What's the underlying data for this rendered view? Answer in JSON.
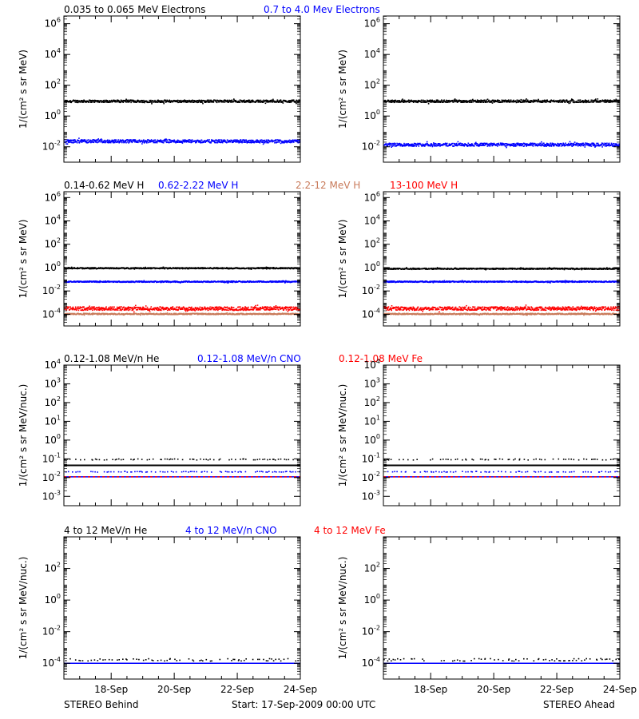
{
  "footer": {
    "left_label": "STEREO Behind",
    "center_label": "Start: 17-Sep-2009 00:00 UTC",
    "right_label": "STEREO Ahead"
  },
  "x_axis": {
    "ticks": [
      {
        "day": 1.5,
        "label": "18-Sep"
      },
      {
        "day": 3.5,
        "label": "20-Sep"
      },
      {
        "day": 5.5,
        "label": "22-Sep"
      },
      {
        "day": 7.5,
        "label": "24-Sep"
      }
    ],
    "range_days": [
      0,
      7.5
    ]
  },
  "chart_data": [
    {
      "type": "scatter",
      "row": 0,
      "spacecraft": "STEREO Behind",
      "ylabel": "1/(cm² s sr MeV)",
      "yscale": "log",
      "ylim_exp": [
        -3,
        6.5
      ],
      "yticks_exp": [
        -2,
        0,
        2,
        4,
        6
      ],
      "legend": [
        {
          "name": "0.035 to 0.065 MeV Electrons",
          "color": "#000000"
        },
        {
          "name": "0.7 to 4.0 Mev Electrons",
          "color": "#0000ff"
        }
      ],
      "series": [
        {
          "name": "0.035 to 0.065 MeV Electrons",
          "color": "#000000",
          "level": 10,
          "spread": 0.08
        },
        {
          "name": "0.7 to 4.0 Mev Electrons",
          "color": "#0000ff",
          "level": 0.025,
          "spread": 0.1
        }
      ]
    },
    {
      "type": "scatter",
      "row": 0,
      "spacecraft": "STEREO Ahead",
      "ylabel": "1/(cm² s sr MeV)",
      "yscale": "log",
      "ylim_exp": [
        -3,
        6.5
      ],
      "yticks_exp": [
        -2,
        0,
        2,
        4,
        6
      ],
      "legend": [],
      "series": [
        {
          "name": "0.035 to 0.065 MeV Electrons",
          "color": "#000000",
          "level": 10,
          "spread": 0.08
        },
        {
          "name": "0.7 to 4.0 Mev Electrons",
          "color": "#0000ff",
          "level": 0.015,
          "spread": 0.1
        }
      ]
    },
    {
      "type": "scatter",
      "row": 1,
      "spacecraft": "STEREO Behind",
      "ylabel": "1/(cm² s sr MeV)",
      "yscale": "log",
      "ylim_exp": [
        -5,
        6.5
      ],
      "yticks_exp": [
        -4,
        -2,
        0,
        2,
        4,
        6
      ],
      "legend": [
        {
          "name": "0.14-0.62 MeV H",
          "color": "#000000"
        },
        {
          "name": "0.62-2.22 MeV H",
          "color": "#0000ff"
        },
        {
          "name": "2.2-12 MeV H",
          "color": "#c87a5a"
        },
        {
          "name": "13-100 MeV H",
          "color": "#ff0000"
        }
      ],
      "series": [
        {
          "name": "0.14-0.62 MeV H",
          "color": "#000000",
          "level": 1.0,
          "spread": 0.05
        },
        {
          "name": "0.62-2.22 MeV H",
          "color": "#0000ff",
          "level": 0.07,
          "spread": 0.05
        },
        {
          "name": "2.2-12 MeV H",
          "color": "#c87a5a",
          "level": 0.00012,
          "spread": 0.05
        },
        {
          "name": "13-100 MeV H",
          "color": "#ff0000",
          "level": 0.00035,
          "spread": 0.15
        }
      ]
    },
    {
      "type": "scatter",
      "row": 1,
      "spacecraft": "STEREO Ahead",
      "ylabel": "1/(cm² s sr MeV)",
      "yscale": "log",
      "ylim_exp": [
        -5,
        6.5
      ],
      "yticks_exp": [
        -4,
        -2,
        0,
        2,
        4,
        6
      ],
      "legend": [],
      "series": [
        {
          "name": "0.14-0.62 MeV H",
          "color": "#000000",
          "level": 0.9,
          "spread": 0.05
        },
        {
          "name": "0.62-2.22 MeV H",
          "color": "#0000ff",
          "level": 0.07,
          "spread": 0.05
        },
        {
          "name": "2.2-12 MeV H",
          "color": "#c87a5a",
          "level": 0.00012,
          "spread": 0.05
        },
        {
          "name": "13-100 MeV H",
          "color": "#ff0000",
          "level": 0.00035,
          "spread": 0.15
        }
      ]
    },
    {
      "type": "scatter",
      "row": 2,
      "spacecraft": "STEREO Behind",
      "ylabel": "1/(cm² s sr MeV/nuc.)",
      "yscale": "log",
      "ylim_exp": [
        -3.5,
        4
      ],
      "yticks_exp": [
        -3,
        -2,
        -1,
        0,
        1,
        2,
        3,
        4
      ],
      "legend": [
        {
          "name": "0.12-1.08 MeV/n He",
          "color": "#000000"
        },
        {
          "name": "0.12-1.08 MeV/n CNO",
          "color": "#0000ff"
        },
        {
          "name": "0.12-1.08 MeV Fe",
          "color": "#ff0000"
        }
      ],
      "baselines": [
        {
          "name": "0.12-1.08 MeV/n He",
          "color": "#000000",
          "value": 0.045
        },
        {
          "name": "0.12-1.08 MeV/n CNO",
          "color": "#0000ff",
          "value": 0.011
        },
        {
          "name": "0.12-1.08 MeV Fe",
          "color": "#ff0000",
          "value": 0.011
        }
      ],
      "series": [
        {
          "name": "0.12-1.08 MeV/n He",
          "color": "#000000",
          "level": 0.1,
          "spread": 0.03,
          "sparse": true
        },
        {
          "name": "0.12-1.08 MeV/n CNO",
          "color": "#0000ff",
          "level": 0.022,
          "spread": 0.02,
          "sparse": true
        }
      ]
    },
    {
      "type": "scatter",
      "row": 2,
      "spacecraft": "STEREO Ahead",
      "ylabel": "1/(cm² s sr MeV/nuc.)",
      "yscale": "log",
      "ylim_exp": [
        -3.5,
        4
      ],
      "yticks_exp": [
        -3,
        -2,
        -1,
        0,
        1,
        2,
        3,
        4
      ],
      "legend": [],
      "baselines": [
        {
          "name": "0.12-1.08 MeV/n He",
          "color": "#000000",
          "value": 0.045
        },
        {
          "name": "0.12-1.08 MeV/n CNO",
          "color": "#0000ff",
          "value": 0.011
        },
        {
          "name": "0.12-1.08 MeV Fe",
          "color": "#ff0000",
          "value": 0.011
        }
      ],
      "series": [
        {
          "name": "0.12-1.08 MeV/n He",
          "color": "#000000",
          "level": 0.1,
          "spread": 0.03,
          "sparse": true
        },
        {
          "name": "0.12-1.08 MeV/n CNO",
          "color": "#0000ff",
          "level": 0.022,
          "spread": 0.02,
          "sparse": true
        }
      ]
    },
    {
      "type": "scatter",
      "row": 3,
      "spacecraft": "STEREO Behind",
      "ylabel": "1/(cm² s sr MeV/nuc.)",
      "yscale": "log",
      "ylim_exp": [
        -5,
        4
      ],
      "yticks_exp": [
        -4,
        -2,
        0,
        2
      ],
      "legend": [
        {
          "name": "4 to 12 MeV/n He",
          "color": "#000000"
        },
        {
          "name": "4 to 12 MeV/n CNO",
          "color": "#0000ff"
        },
        {
          "name": "4 to 12 MeV Fe",
          "color": "#ff0000"
        }
      ],
      "baselines": [
        {
          "name": "4 to 12 MeV/n CNO",
          "color": "#0000ff",
          "value": 0.0001
        }
      ],
      "series": [
        {
          "name": "4 to 12 MeV/n He",
          "color": "#000000",
          "level": 0.00018,
          "spread": 0.08,
          "sparse": true
        }
      ]
    },
    {
      "type": "scatter",
      "row": 3,
      "spacecraft": "STEREO Ahead",
      "ylabel": "1/(cm² s sr MeV/nuc.)",
      "yscale": "log",
      "ylim_exp": [
        -5,
        4
      ],
      "yticks_exp": [
        -4,
        -2,
        0,
        2
      ],
      "legend": [],
      "baselines": [
        {
          "name": "4 to 12 MeV/n CNO",
          "color": "#0000ff",
          "value": 0.0001
        }
      ],
      "series": [
        {
          "name": "4 to 12 MeV/n He",
          "color": "#000000",
          "level": 0.00018,
          "spread": 0.08,
          "sparse": true
        }
      ]
    }
  ]
}
